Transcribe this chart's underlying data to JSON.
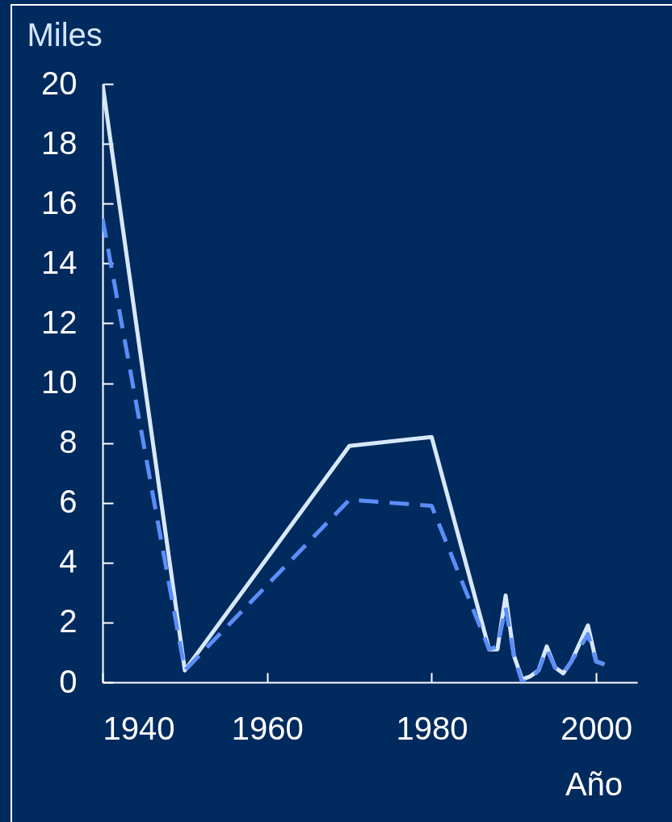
{
  "chart_data": {
    "type": "line",
    "xlabel": "Año",
    "ylabel": "Miles",
    "x": [
      1940,
      1950,
      1970,
      1980,
      1987,
      1988,
      1989,
      1990,
      1991,
      1992,
      1993,
      1994,
      1995,
      1996,
      1997,
      1999,
      2000,
      2001
    ],
    "series": [
      {
        "color": "#d7e8fb",
        "line_style": "solid",
        "values": [
          20,
          0.4,
          7.9,
          8.2,
          1.1,
          1.1,
          2.9,
          0.9,
          0.1,
          0.2,
          0.4,
          1.2,
          0.5,
          0.3,
          0.7,
          1.9,
          0.7,
          0.6
        ]
      },
      {
        "color": "#5b8ef8",
        "line_style": "dashed",
        "values": [
          15.5,
          0.4,
          6.1,
          5.9,
          1.1,
          1.2,
          2.5,
          0.9,
          0.0,
          0.1,
          0.4,
          1.1,
          0.5,
          0.3,
          0.7,
          1.6,
          0.7,
          0.6
        ]
      }
    ],
    "xlim": [
      1940,
      2005
    ],
    "xticks": [
      1940,
      1960,
      1980,
      2000
    ],
    "ylim": [
      0,
      20
    ],
    "yticks": [
      0,
      2,
      4,
      6,
      8,
      10,
      12,
      14,
      16,
      18,
      20
    ],
    "grid": false
  }
}
